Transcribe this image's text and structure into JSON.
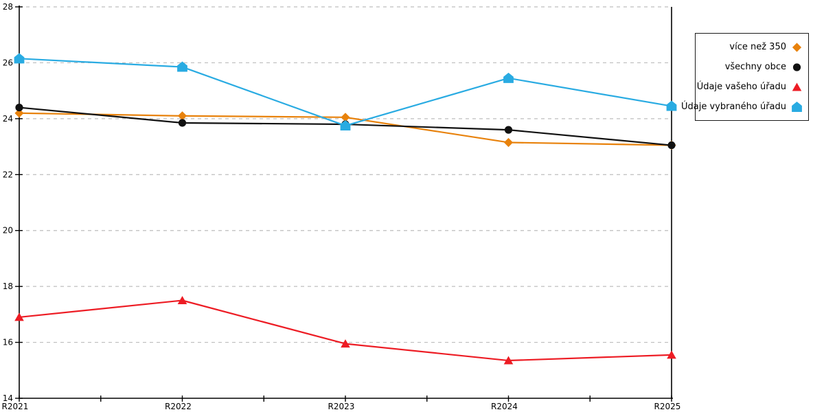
{
  "chart_data": {
    "type": "line",
    "title": "",
    "xlabel": "",
    "ylabel": "",
    "categories": [
      "R2021",
      "R2022",
      "R2023",
      "R2024",
      "R2025"
    ],
    "series": [
      {
        "name": "více než 350",
        "color": "#E8820C",
        "marker": "diamond",
        "values": [
          24.2,
          24.1,
          24.05,
          23.15,
          23.05
        ]
      },
      {
        "name": "všechny obce",
        "color": "#111111",
        "marker": "circle",
        "values": [
          24.4,
          23.85,
          23.8,
          23.6,
          23.05
        ]
      },
      {
        "name": "Údaje vašeho úřadu",
        "color": "#ED1C24",
        "marker": "triangle",
        "values": [
          16.9,
          17.5,
          15.95,
          15.35,
          15.55
        ]
      },
      {
        "name": "Údaje vybraného úřadu",
        "color": "#29ABE2",
        "marker": "pentagon",
        "values": [
          26.15,
          25.85,
          23.75,
          25.45,
          24.45
        ]
      }
    ],
    "ylim": [
      14,
      28
    ],
    "ytick_step": 2,
    "yticks": [
      14,
      16,
      18,
      20,
      22,
      24,
      26,
      28
    ],
    "grid": "horizontal-dashed",
    "gridline_color": "#BDBDBD",
    "axis_color": "#000000",
    "tick_label_color": "#000000",
    "tick_font_size": 12,
    "legend_position": "right-outside",
    "legend_border_color": "#1a1a1a"
  }
}
